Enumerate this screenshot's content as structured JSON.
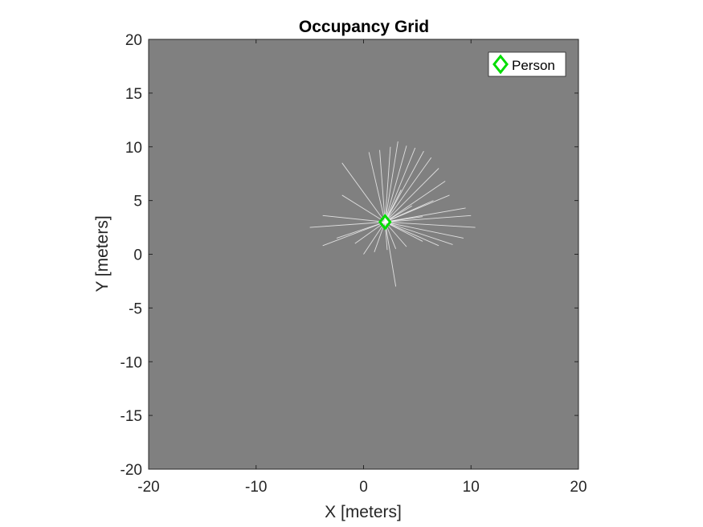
{
  "chart_data": {
    "type": "scatter",
    "title": "Occupancy Grid",
    "xlabel": "X [meters]",
    "ylabel": "Y [meters]",
    "xlim": [
      -20,
      20
    ],
    "ylim": [
      -20,
      20
    ],
    "xticks": [
      "-20",
      "-10",
      "0",
      "10",
      "20"
    ],
    "yticks": [
      "20",
      "15",
      "10",
      "5",
      "0",
      "-5",
      "-10",
      "-15",
      "-20"
    ],
    "grid": false,
    "background_color": "#808080",
    "scan_color": "#ffffff",
    "scan_origin": [
      2,
      3
    ],
    "scan_ray_endpoints": [
      [
        0.5,
        9.5
      ],
      [
        1.5,
        9.7
      ],
      [
        2.5,
        10
      ],
      [
        3.2,
        10.5
      ],
      [
        4.0,
        10.1
      ],
      [
        4.8,
        9.9
      ],
      [
        5.6,
        9.6
      ],
      [
        6.3,
        9.0
      ],
      [
        7.0,
        8.0
      ],
      [
        7.6,
        6.8
      ],
      [
        8.0,
        5.5
      ],
      [
        9.5,
        4.3
      ],
      [
        10.0,
        3.6
      ],
      [
        10.4,
        2.5
      ],
      [
        9.3,
        1.5
      ],
      [
        8.3,
        0.9
      ],
      [
        7.0,
        0.8
      ],
      [
        5.5,
        1.2
      ],
      [
        4.0,
        0.7
      ],
      [
        3.0,
        0.5
      ],
      [
        2.2,
        0.4
      ],
      [
        1.0,
        0.2
      ],
      [
        0.0,
        0.0
      ],
      [
        -0.8,
        1.0
      ],
      [
        -2.5,
        1.5
      ],
      [
        -3.8,
        0.8
      ],
      [
        -5.0,
        2.5
      ],
      [
        -3.8,
        3.6
      ],
      [
        -2.0,
        5.5
      ],
      [
        -2.0,
        8.5
      ],
      [
        3.0,
        -3.0
      ],
      [
        6.5,
        5.0
      ],
      [
        4.5,
        4.5
      ],
      [
        5.5,
        3.5
      ],
      [
        3.5,
        6.0
      ]
    ],
    "series": [
      {
        "name": "Person",
        "x": [
          2
        ],
        "y": [
          3
        ],
        "marker": "diamond",
        "color": "#00dd00"
      }
    ],
    "legend": {
      "position": "top-right",
      "entries": [
        "Person"
      ]
    }
  }
}
